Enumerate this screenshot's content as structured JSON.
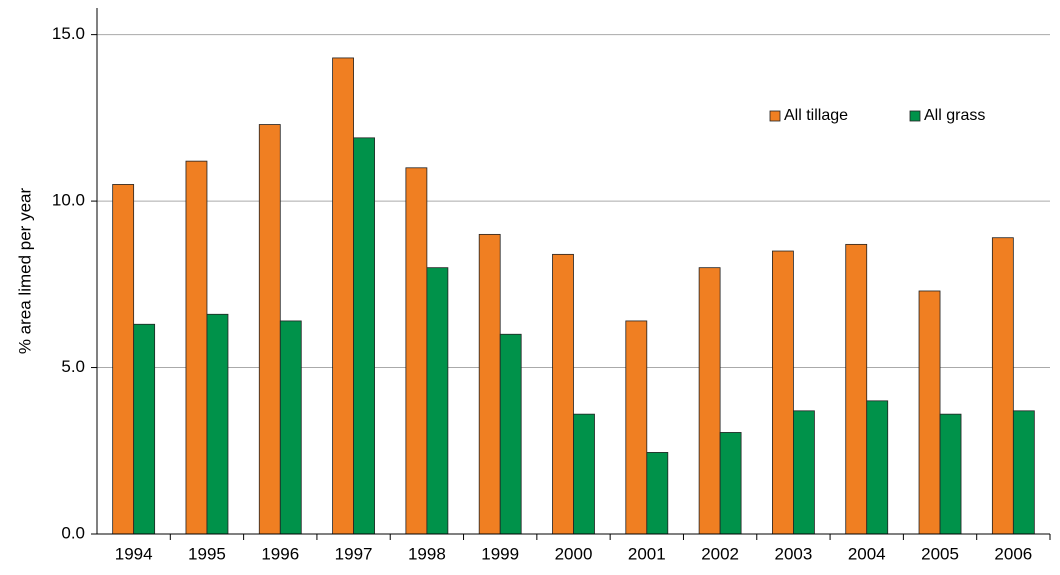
{
  "chart_data": {
    "type": "bar",
    "y_label": "% area limed per year",
    "categories": [
      "1994",
      "1995",
      "1996",
      "1997",
      "1998",
      "1999",
      "2000",
      "2001",
      "2002",
      "2003",
      "2004",
      "2005",
      "2006"
    ],
    "series": [
      {
        "name": "All tillage",
        "color": "#f07f22",
        "values": [
          10.5,
          11.2,
          12.3,
          14.3,
          11.0,
          9.0,
          8.4,
          6.4,
          8.0,
          8.5,
          8.7,
          7.3,
          8.9
        ]
      },
      {
        "name": "All grass",
        "color": "#00924a",
        "values": [
          6.3,
          6.6,
          6.4,
          11.9,
          8.0,
          6.0,
          3.6,
          2.45,
          3.05,
          3.7,
          4.0,
          3.6,
          3.7
        ]
      }
    ],
    "ylim": [
      0,
      15.8
    ],
    "yticks": [
      {
        "value": 0,
        "label": "0.0"
      },
      {
        "value": 5,
        "label": "5.0"
      },
      {
        "value": 10,
        "label": "10.0"
      },
      {
        "value": 15,
        "label": "15.0"
      }
    ],
    "grid": true,
    "legend": "upper-right"
  }
}
